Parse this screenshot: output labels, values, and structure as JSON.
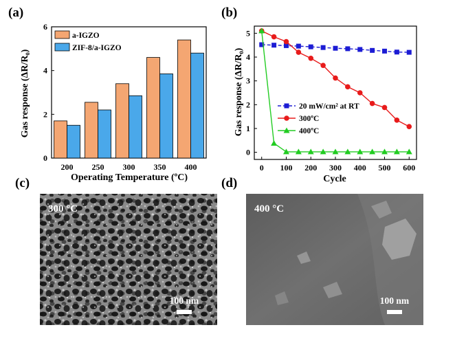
{
  "panels": {
    "a": {
      "label": "(a)"
    },
    "b": {
      "label": "(b)"
    },
    "c": {
      "label": "(c)",
      "image_label": "300 °C",
      "scale_bar": "100 nm"
    },
    "d": {
      "label": "(d)",
      "image_label": "400 °C",
      "scale_bar": "100 nm"
    }
  },
  "chart_data": [
    {
      "type": "bar",
      "panel": "a",
      "xlabel": "Operating Temperature (ºC)",
      "ylabel": "Gas response (ΔR/R₀)",
      "categories": [
        "200",
        "250",
        "300",
        "350",
        "400"
      ],
      "ylim": [
        0,
        6
      ],
      "yticks": [
        "0",
        "2",
        "4",
        "6"
      ],
      "legend_position": "top-left",
      "series": [
        {
          "name": "a-IGZO",
          "color": "#f4a672",
          "values": [
            1.7,
            2.55,
            3.4,
            4.6,
            5.4
          ]
        },
        {
          "name": "ZIF-8/a-IGZO",
          "color": "#4aa8ea",
          "values": [
            1.5,
            2.2,
            2.85,
            3.85,
            4.8
          ]
        }
      ]
    },
    {
      "type": "line",
      "panel": "b",
      "xlabel": "Cycle",
      "ylabel": "Gas response (ΔR/R₀)",
      "xlim": [
        -30,
        630
      ],
      "ylim": [
        -0.3,
        5.3
      ],
      "xticks": [
        "0",
        "100",
        "200",
        "300",
        "400",
        "500",
        "600"
      ],
      "yticks": [
        "0",
        "1",
        "2",
        "3",
        "4",
        "5"
      ],
      "legend_position": "middle-left",
      "series": [
        {
          "name": "20 mW/cm² at RT",
          "color": "#1c1cd4",
          "marker": "square",
          "dashed": true,
          "x": [
            0,
            50,
            100,
            150,
            200,
            250,
            300,
            350,
            400,
            450,
            500,
            550,
            600
          ],
          "y": [
            4.52,
            4.5,
            4.48,
            4.46,
            4.43,
            4.4,
            4.37,
            4.35,
            4.32,
            4.28,
            4.25,
            4.21,
            4.2
          ]
        },
        {
          "name": "300ºC",
          "color": "#e81b1b",
          "marker": "circle",
          "dashed": false,
          "x": [
            0,
            50,
            100,
            150,
            200,
            250,
            300,
            350,
            400,
            450,
            500,
            550,
            600
          ],
          "y": [
            5.1,
            4.85,
            4.65,
            4.2,
            3.95,
            3.65,
            3.12,
            2.75,
            2.5,
            2.05,
            1.88,
            1.35,
            1.08
          ]
        },
        {
          "name": "400ºC",
          "color": "#22cc22",
          "marker": "triangle",
          "dashed": false,
          "x": [
            0,
            50,
            100,
            150,
            200,
            250,
            300,
            350,
            400,
            450,
            500,
            550,
            600
          ],
          "y": [
            5.1,
            0.38,
            0.02,
            0.02,
            0.02,
            0.02,
            0.02,
            0.02,
            0.02,
            0.02,
            0.02,
            0.02,
            0.02
          ]
        }
      ]
    }
  ]
}
